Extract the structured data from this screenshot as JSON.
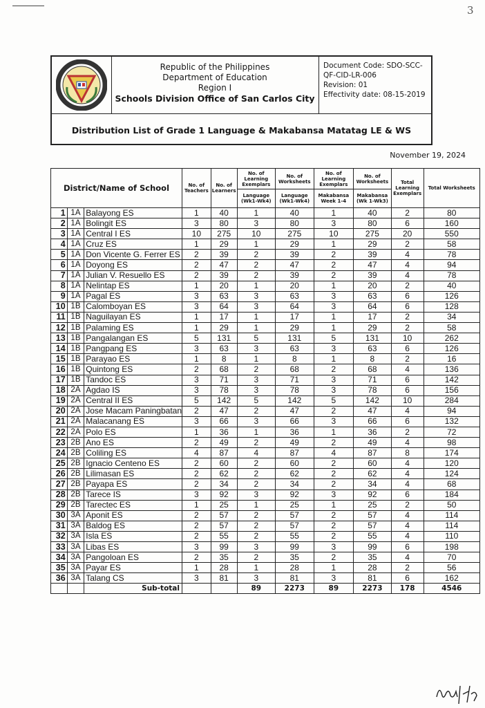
{
  "page_number": "3",
  "header": {
    "lines": [
      "Republic of the Philippines",
      "Department of Education",
      "Region I"
    ],
    "office": "Schools Division Office of San Carlos City",
    "doc_code": "Document Code: SDO-SCC-QF-CID-LR-006",
    "revision": "Revision: 01",
    "effectivity": "Effectivity date: 08-15-2019",
    "logo_text": "SCHOOLS DIVISION OFFICE · SAN CARLOS CITY, PANGASINAN"
  },
  "title": "Distribution List of Grade 1 Language & Makabansa Matatag LE & WS",
  "date": "November 19, 2024",
  "table": {
    "headers": {
      "school": "District/Name of School",
      "teachers": "No. of Teachers",
      "learners": "No. of Learners",
      "le_lang_top": "No. of Learning Exemplars",
      "ws_lang_top": "No. of Worksheets",
      "le_mak_top": "No. of Learning Exemplars",
      "ws_mak_top": "No. of Worksheets",
      "total_le": "Total Learning Exemplars",
      "total_ws": "Total Worksheets",
      "le_lang_sub": "Language (Wk1-Wk4)",
      "ws_lang_sub": "Language (Wk1-Wk4)",
      "le_mak_sub": "Makabansa Week 1-4",
      "ws_mak_sub": "Makabansa (Wk 1-Wk3)"
    },
    "rows": [
      [
        "1",
        "1A",
        "Balayong ES",
        "1",
        "40",
        "1",
        "40",
        "1",
        "40",
        "2",
        "80"
      ],
      [
        "2",
        "1A",
        "Bolingit ES",
        "3",
        "80",
        "3",
        "80",
        "3",
        "80",
        "6",
        "160"
      ],
      [
        "3",
        "1A",
        "Central I ES",
        "10",
        "275",
        "10",
        "275",
        "10",
        "275",
        "20",
        "550"
      ],
      [
        "4",
        "1A",
        "Cruz ES",
        "1",
        "29",
        "1",
        "29",
        "1",
        "29",
        "2",
        "58"
      ],
      [
        "5",
        "1A",
        "Don Vicente G. Ferrer ES",
        "2",
        "39",
        "2",
        "39",
        "2",
        "39",
        "4",
        "78"
      ],
      [
        "6",
        "1A",
        "Doyong ES",
        "2",
        "47",
        "2",
        "47",
        "2",
        "47",
        "4",
        "94"
      ],
      [
        "7",
        "1A",
        "Julian V. Resuello ES",
        "2",
        "39",
        "2",
        "39",
        "2",
        "39",
        "4",
        "78"
      ],
      [
        "8",
        "1A",
        "Nelintap ES",
        "1",
        "20",
        "1",
        "20",
        "1",
        "20",
        "2",
        "40"
      ],
      [
        "9",
        "1A",
        "Pagal ES",
        "3",
        "63",
        "3",
        "63",
        "3",
        "63",
        "6",
        "126"
      ],
      [
        "10",
        "1B",
        "Calomboyan ES",
        "3",
        "64",
        "3",
        "64",
        "3",
        "64",
        "6",
        "128"
      ],
      [
        "11",
        "1B",
        "Naguilayan ES",
        "1",
        "17",
        "1",
        "17",
        "1",
        "17",
        "2",
        "34"
      ],
      [
        "12",
        "1B",
        "Palaming ES",
        "1",
        "29",
        "1",
        "29",
        "1",
        "29",
        "2",
        "58"
      ],
      [
        "13",
        "1B",
        "Pangalangan ES",
        "5",
        "131",
        "5",
        "131",
        "5",
        "131",
        "10",
        "262"
      ],
      [
        "14",
        "1B",
        "Pangpang ES",
        "3",
        "63",
        "3",
        "63",
        "3",
        "63",
        "6",
        "126"
      ],
      [
        "15",
        "1B",
        "Parayao ES",
        "1",
        "8",
        "1",
        "8",
        "1",
        "8",
        "2",
        "16"
      ],
      [
        "16",
        "1B",
        "Quintong ES",
        "2",
        "68",
        "2",
        "68",
        "2",
        "68",
        "4",
        "136"
      ],
      [
        "17",
        "1B",
        "Tandoc ES",
        "3",
        "71",
        "3",
        "71",
        "3",
        "71",
        "6",
        "142"
      ],
      [
        "18",
        "2A",
        "Agdao IS",
        "3",
        "78",
        "3",
        "78",
        "3",
        "78",
        "6",
        "156"
      ],
      [
        "19",
        "2A",
        "Central II ES",
        "5",
        "142",
        "5",
        "142",
        "5",
        "142",
        "10",
        "284"
      ],
      [
        "20",
        "2A",
        "Jose Macam Paningbatan",
        "2",
        "47",
        "2",
        "47",
        "2",
        "47",
        "4",
        "94"
      ],
      [
        "21",
        "2A",
        "Malacanang ES",
        "3",
        "66",
        "3",
        "66",
        "3",
        "66",
        "6",
        "132"
      ],
      [
        "22",
        "2A",
        "Polo ES",
        "1",
        "36",
        "1",
        "36",
        "1",
        "36",
        "2",
        "72"
      ],
      [
        "23",
        "2B",
        "Ano ES",
        "2",
        "49",
        "2",
        "49",
        "2",
        "49",
        "4",
        "98"
      ],
      [
        "24",
        "2B",
        "Coliling ES",
        "4",
        "87",
        "4",
        "87",
        "4",
        "87",
        "8",
        "174"
      ],
      [
        "25",
        "2B",
        "Ignacio Centeno ES",
        "2",
        "60",
        "2",
        "60",
        "2",
        "60",
        "4",
        "120"
      ],
      [
        "26",
        "2B",
        "Lilimasan ES",
        "2",
        "62",
        "2",
        "62",
        "2",
        "62",
        "4",
        "124"
      ],
      [
        "27",
        "2B",
        "Payapa ES",
        "2",
        "34",
        "2",
        "34",
        "2",
        "34",
        "4",
        "68"
      ],
      [
        "28",
        "2B",
        "Tarece IS",
        "3",
        "92",
        "3",
        "92",
        "3",
        "92",
        "6",
        "184"
      ],
      [
        "29",
        "2B",
        "Tarectec ES",
        "1",
        "25",
        "1",
        "25",
        "1",
        "25",
        "2",
        "50"
      ],
      [
        "30",
        "3A",
        "Aponit ES",
        "2",
        "57",
        "2",
        "57",
        "2",
        "57",
        "4",
        "114"
      ],
      [
        "31",
        "3A",
        "Baldog ES",
        "2",
        "57",
        "2",
        "57",
        "2",
        "57",
        "4",
        "114"
      ],
      [
        "32",
        "3A",
        "Isla ES",
        "2",
        "55",
        "2",
        "55",
        "2",
        "55",
        "4",
        "110"
      ],
      [
        "33",
        "3A",
        "Libas ES",
        "3",
        "99",
        "3",
        "99",
        "3",
        "99",
        "6",
        "198"
      ],
      [
        "34",
        "3A",
        "Pangoloan ES",
        "2",
        "35",
        "2",
        "35",
        "2",
        "35",
        "4",
        "70"
      ],
      [
        "35",
        "3A",
        "Payar ES",
        "1",
        "28",
        "1",
        "28",
        "1",
        "28",
        "2",
        "56"
      ],
      [
        "36",
        "3A",
        "Talang CS",
        "3",
        "81",
        "3",
        "81",
        "3",
        "81",
        "6",
        "162"
      ]
    ],
    "subtotal": {
      "label": "Sub-total",
      "values": [
        "",
        "",
        "89",
        "2273",
        "89",
        "2273",
        "178",
        "4546"
      ]
    }
  }
}
